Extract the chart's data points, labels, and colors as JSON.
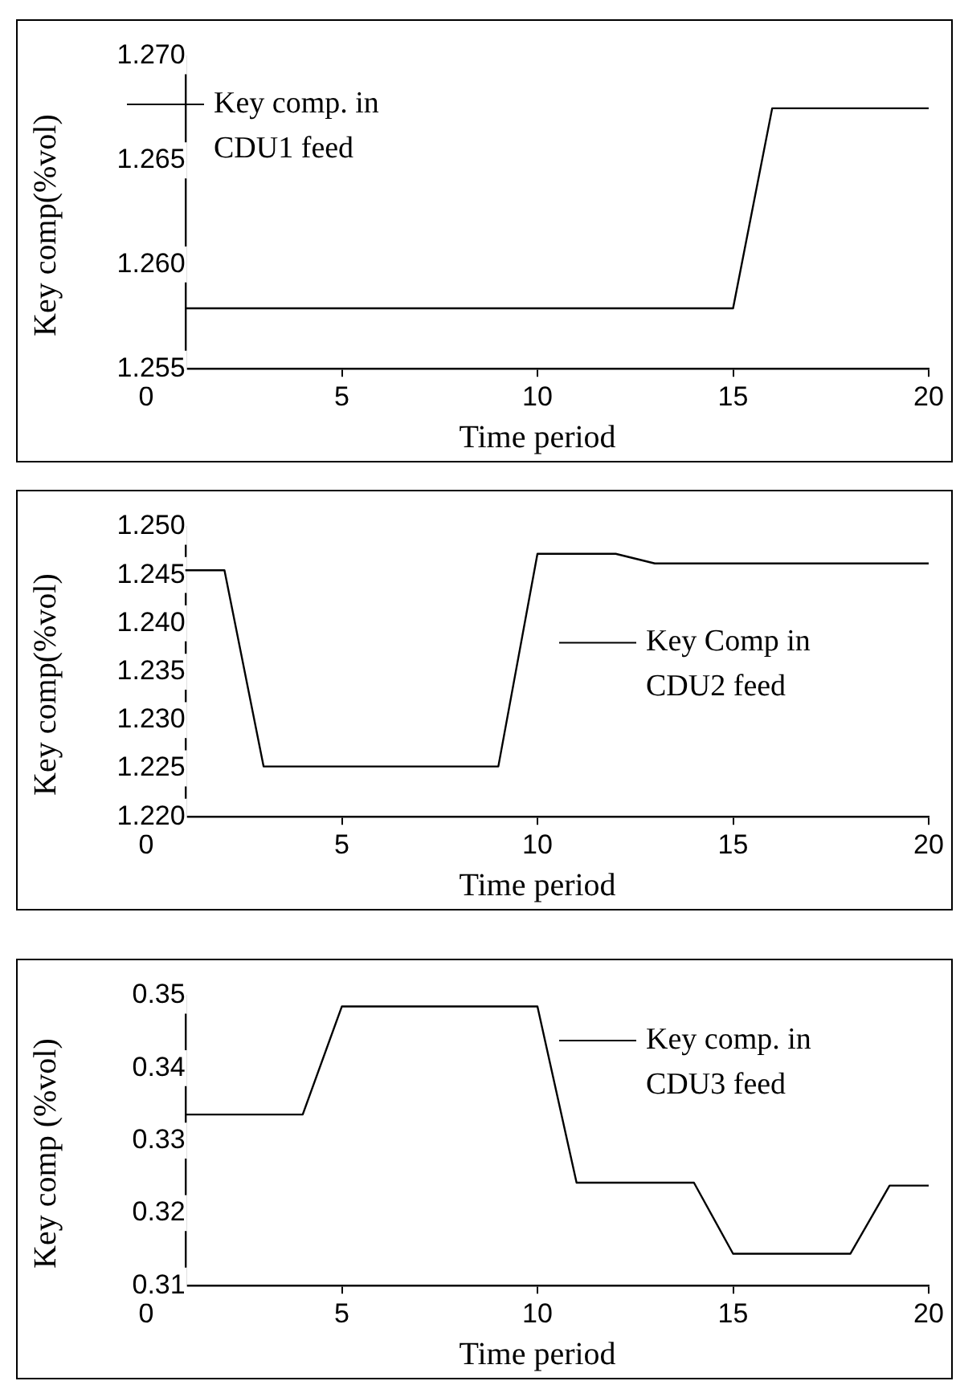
{
  "chart_data": [
    {
      "type": "line",
      "xlabel": "Time period",
      "ylabel": "Key comp(%vol)",
      "x": [
        1,
        2,
        3,
        4,
        5,
        6,
        7,
        8,
        9,
        10,
        11,
        12,
        13,
        14,
        15,
        16,
        17,
        18,
        19,
        20
      ],
      "series": [
        {
          "name": "Key comp. in CDU1 feed",
          "color": "#000000",
          "values": [
            1.2579,
            1.2579,
            1.2579,
            1.2579,
            1.2579,
            1.2579,
            1.2579,
            1.2579,
            1.2579,
            1.2579,
            1.2579,
            1.2579,
            1.2579,
            1.2579,
            1.2579,
            1.2675,
            1.2675,
            1.2675,
            1.2675,
            1.2675
          ]
        }
      ],
      "xlim": [
        0,
        20
      ],
      "xticks": [
        0,
        5,
        10,
        15,
        20
      ],
      "ylim": [
        1.255,
        1.27
      ],
      "yticks": [
        {
          "value": 1.255,
          "label": "1.255"
        },
        {
          "value": 1.26,
          "label": "1.260"
        },
        {
          "value": 1.265,
          "label": "1.265"
        },
        {
          "value": 1.27,
          "label": "1.270"
        }
      ],
      "grid": false,
      "legend": "top left",
      "marker": "none",
      "line_style": "solid"
    },
    {
      "type": "line",
      "xlabel": "Time period",
      "ylabel": "Key comp(%vol)",
      "x": [
        1,
        2,
        3,
        4,
        5,
        6,
        7,
        8,
        9,
        10,
        11,
        12,
        13,
        14,
        15,
        16,
        17,
        18,
        19,
        20
      ],
      "series": [
        {
          "name": "Key Comp in CDU2 feed",
          "color": "#000000",
          "values": [
            1.2455,
            1.2455,
            1.2252,
            1.2252,
            1.2252,
            1.2252,
            1.2252,
            1.2252,
            1.2252,
            1.2472,
            1.2472,
            1.2472,
            1.2462,
            1.2462,
            1.2462,
            1.2462,
            1.2462,
            1.2462,
            1.2462,
            1.2462
          ]
        }
      ],
      "xlim": [
        0,
        20
      ],
      "xticks": [
        0,
        5,
        10,
        15,
        20
      ],
      "ylim": [
        1.22,
        1.25
      ],
      "yticks": [
        {
          "value": 1.22,
          "label": "1.220"
        },
        {
          "value": 1.225,
          "label": "1.225"
        },
        {
          "value": 1.23,
          "label": "1.230"
        },
        {
          "value": 1.235,
          "label": "1.235"
        },
        {
          "value": 1.24,
          "label": "1.240"
        },
        {
          "value": 1.245,
          "label": "1.245"
        },
        {
          "value": 1.25,
          "label": "1.250"
        }
      ],
      "grid": false,
      "legend": "right",
      "marker": "none",
      "line_style": "solid"
    },
    {
      "type": "line",
      "xlabel": "Time period",
      "ylabel": "Key comp (%vol)",
      "x": [
        1,
        2,
        3,
        4,
        5,
        6,
        7,
        8,
        9,
        10,
        11,
        12,
        13,
        14,
        15,
        16,
        17,
        18,
        19,
        20
      ],
      "series": [
        {
          "name": "Key comp. in CDU3 feed",
          "color": "#000000",
          "values": [
            0.3336,
            0.3336,
            0.3336,
            0.3336,
            0.3485,
            0.3485,
            0.3485,
            0.3485,
            0.3485,
            0.3485,
            0.3242,
            0.3242,
            0.3242,
            0.3242,
            0.3144,
            0.3144,
            0.3144,
            0.3144,
            0.3238,
            0.3238
          ]
        }
      ],
      "xlim": [
        0,
        20
      ],
      "xticks": [
        0,
        5,
        10,
        15,
        20
      ],
      "ylim": [
        0.31,
        0.35
      ],
      "yticks": [
        0.31,
        0.32,
        0.33,
        0.34,
        0.35
      ],
      "grid": false,
      "legend": "top right",
      "marker": "none",
      "line_style": "solid"
    }
  ]
}
